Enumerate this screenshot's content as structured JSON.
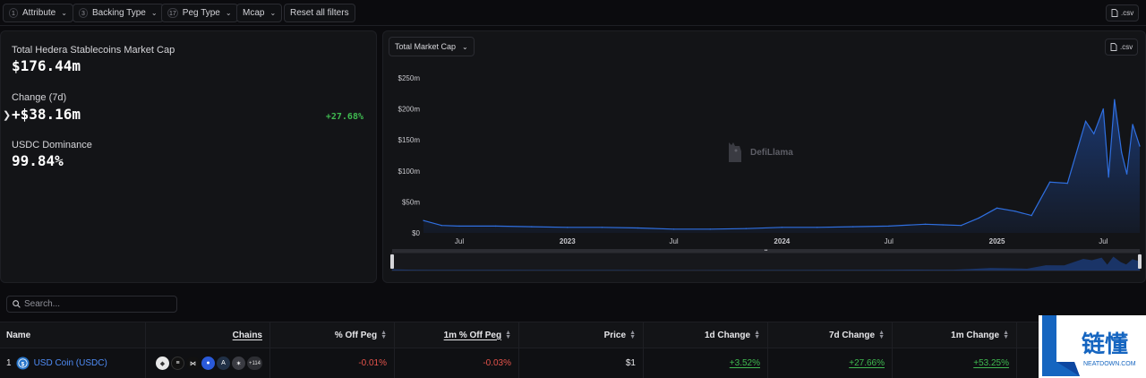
{
  "filters": {
    "items": [
      {
        "count": "1",
        "label": "Attribute"
      },
      {
        "count": "3",
        "label": "Backing Type"
      },
      {
        "count": "17",
        "label": "Peg Type"
      },
      {
        "count": "",
        "label": "Mcap"
      }
    ],
    "reset_label": "Reset all filters",
    "csv_label": ".csv"
  },
  "stats": {
    "mcap_label": "Total Hedera Stablecoins Market Cap",
    "mcap_value": "$176.44m",
    "change_label": "Change (7d)",
    "change_value": "+$38.16m",
    "change_pct": "+27.68%",
    "dominance_label": "USDC Dominance",
    "dominance_value": "99.84%",
    "expander_icon": "chevron-right-icon"
  },
  "chart": {
    "dropdown_label": "Total Market Cap",
    "csv_label": ".csv",
    "watermark": "DefiLlama",
    "line_color": "#2f6fe0",
    "fill_color": "#1c3c7a"
  },
  "chart_data": {
    "type": "area",
    "title": "",
    "xlabel": "",
    "ylabel": "",
    "y_ticks": [
      "$0",
      "$50m",
      "$100m",
      "$150m",
      "$200m",
      "$250m"
    ],
    "x_ticks": [
      "Jul",
      "2023",
      "Jul",
      "2024",
      "Jul",
      "2025",
      "Jul"
    ],
    "x_range": [
      "2022-05",
      "2025-09"
    ],
    "ylim": [
      0,
      250
    ],
    "unit": "$m",
    "series": [
      {
        "x": [
          "2022-05",
          "2022-06",
          "2022-07",
          "2022-09",
          "2022-11",
          "2023-01",
          "2023-03",
          "2023-05",
          "2023-07",
          "2023-09",
          "2023-11",
          "2024-01",
          "2024-03",
          "2024-05",
          "2024-07",
          "2024-09",
          "2024-10",
          "2024-11",
          "2024-12",
          "2025-01",
          "2025-02",
          "2025-03",
          "2025-04",
          "2025-05",
          "2025-06",
          "2025-06-15",
          "2025-07",
          "2025-07-10",
          "2025-07-20",
          "2025-08",
          "2025-08-10",
          "2025-08-20",
          "2025-09"
        ],
        "values": [
          20,
          12,
          11,
          11,
          10,
          9,
          9,
          8,
          6,
          6,
          7,
          9,
          9,
          10,
          11,
          14,
          13,
          12,
          24,
          40,
          35,
          28,
          82,
          80,
          180,
          160,
          200,
          90,
          215,
          130,
          95,
          175,
          140
        ]
      }
    ],
    "grid": false,
    "legend": "none"
  },
  "search": {
    "placeholder": "Search..."
  },
  "table": {
    "headers": {
      "name": "Name",
      "chains": "Chains",
      "off_peg": "% Off Peg",
      "off_peg_1m": "1m % Off Peg",
      "price": "Price",
      "change_1d": "1d Change",
      "change_7d": "7d Change",
      "change_1m": "1m Change"
    },
    "rows": [
      {
        "rank": "1",
        "name": "USD Coin (USDC)",
        "chains_more": "+114",
        "off_peg": "-0.01%",
        "off_peg_1m": "-0.03%",
        "price": "$1",
        "change_1d": "+3.52%",
        "change_7d": "+27.66%",
        "change_1m": "+53.25%"
      }
    ]
  },
  "brand": {
    "text": "链懂",
    "subtext": "NEATDOWN.COM",
    "color": "#1565c0"
  }
}
